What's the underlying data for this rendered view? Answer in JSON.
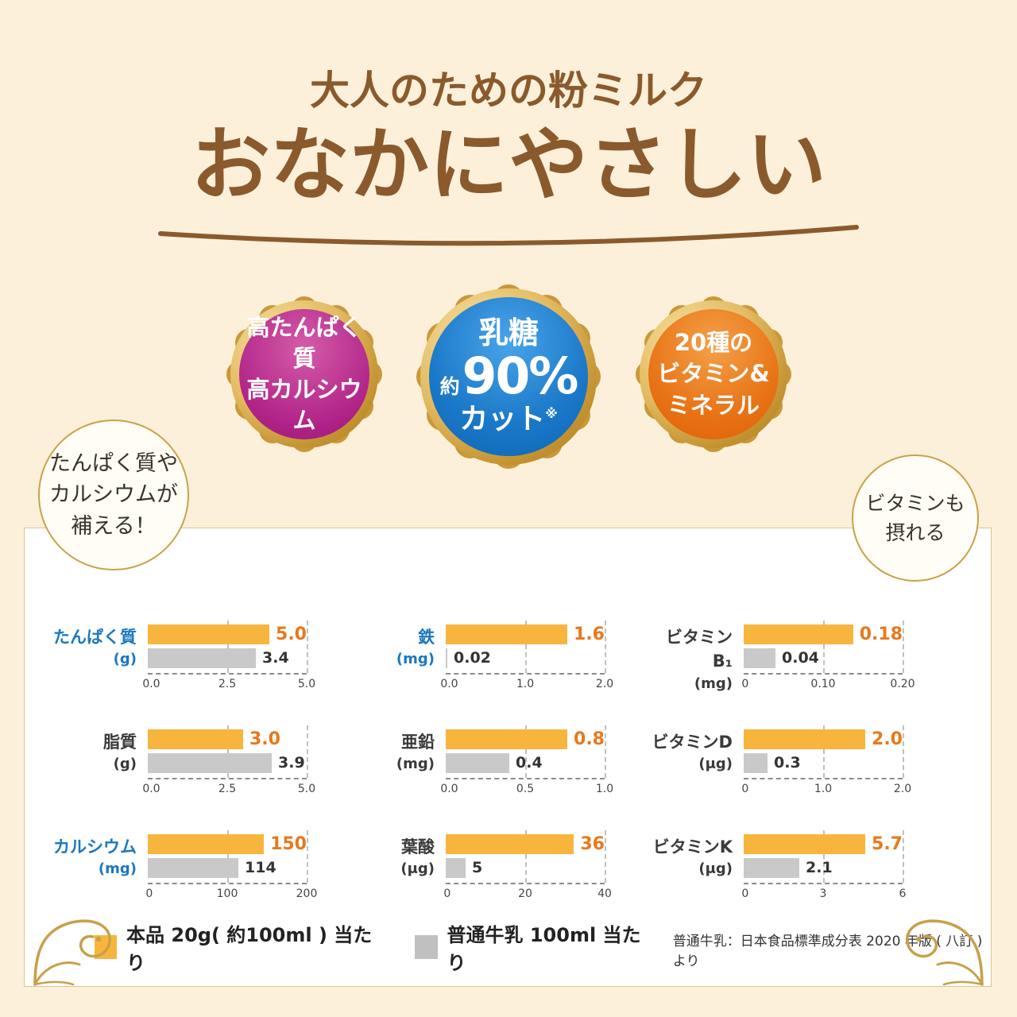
{
  "header": {
    "eyebrow": "大人のための粉ミルク",
    "title": "おなかにやさしい"
  },
  "badges": [
    {
      "name": "protein-calcium",
      "line1": "高たんぱく質",
      "line2": "高カルシウム",
      "color": "#b02288"
    },
    {
      "name": "lactose-cut",
      "top": "乳糖",
      "approx": "約",
      "percent": "90%",
      "bottom": "カット",
      "note_mark": "※",
      "color": "#0e65b5"
    },
    {
      "name": "vitamins-minerals",
      "line1": "20種の",
      "line2": "ビタミン&",
      "line3": "ミネラル",
      "color": "#e87416"
    }
  ],
  "callout_left": {
    "line1": "たんぱく質や",
    "line2": "カルシウムが",
    "line3": "補える！"
  },
  "callout_right": {
    "line1": "ビタミンも",
    "line2": "摂れる"
  },
  "legend": {
    "product": "本品 20g( 約100ml ) 当たり",
    "milk": "普通牛乳 100ml 当たり",
    "note": "普通牛乳：日本食品標準成分表 2020 年版 ( 八訂 ) より"
  },
  "colors": {
    "background": "#fcf0da",
    "headline_brown": "#8a5a2d",
    "bar_product_orange": "#f8b53e",
    "bar_milk_gray": "#c9c9c9",
    "value_orange": "#e8791c",
    "label_blue": "#1a78c0",
    "gold": "#c9a24a"
  },
  "chart_data": [
    {
      "type": "bar",
      "label": "たんぱく質",
      "unit": "(g)",
      "label_color": "#1a78c0",
      "product_value": 5.0,
      "product_display": "5.0",
      "milk_value": 3.4,
      "milk_display": "3.4",
      "max": 5,
      "ticks": [
        "0.0",
        "2.5",
        "5.0"
      ]
    },
    {
      "type": "bar",
      "label": "鉄",
      "unit": "(mg)",
      "label_color": "#1a78c0",
      "product_value": 1.6,
      "product_display": "1.6",
      "milk_value": 0.02,
      "milk_display": "0.02",
      "max": 2,
      "ticks": [
        "0.0",
        "1.0",
        "2.0"
      ]
    },
    {
      "type": "bar",
      "label": "ビタミンB₁",
      "unit": "(mg)",
      "label_color": "#3a3a3a",
      "product_value": 0.18,
      "product_display": "0.18",
      "milk_value": 0.04,
      "milk_display": "0.04",
      "max": 0.2,
      "ticks": [
        "0",
        "0.10",
        "0.20"
      ]
    },
    {
      "type": "bar",
      "label": "脂質",
      "unit": "(g)",
      "label_color": "#3a3a3a",
      "product_value": 3.0,
      "product_display": "3.0",
      "milk_value": 3.9,
      "milk_display": "3.9",
      "max": 5,
      "ticks": [
        "0.0",
        "2.5",
        "5.0"
      ]
    },
    {
      "type": "bar",
      "label": "亜鉛",
      "unit": "(mg)",
      "label_color": "#3a3a3a",
      "product_value": 0.8,
      "product_display": "0.8",
      "milk_value": 0.4,
      "milk_display": "0.4",
      "max": 1,
      "ticks": [
        "0.0",
        "0.5",
        "1.0"
      ]
    },
    {
      "type": "bar",
      "label": "ビタミンD",
      "unit": "(μg)",
      "label_color": "#3a3a3a",
      "product_value": 2.0,
      "product_display": "2.0",
      "milk_value": 0.3,
      "milk_display": "0.3",
      "max": 2,
      "ticks": [
        "0",
        "1.0",
        "2.0"
      ]
    },
    {
      "type": "bar",
      "label": "カルシウム",
      "unit": "(mg)",
      "label_color": "#1a78c0",
      "product_value": 150,
      "product_display": "150",
      "milk_value": 114,
      "milk_display": "114",
      "max": 200,
      "ticks": [
        "0",
        "100",
        "200"
      ]
    },
    {
      "type": "bar",
      "label": "葉酸",
      "unit": "(μg)",
      "label_color": "#3a3a3a",
      "product_value": 36,
      "product_display": "36",
      "milk_value": 5,
      "milk_display": "5",
      "max": 40,
      "ticks": [
        "0",
        "20",
        "40"
      ]
    },
    {
      "type": "bar",
      "label": "ビタミンK",
      "unit": "(μg)",
      "label_color": "#3a3a3a",
      "product_value": 5.7,
      "product_display": "5.7",
      "milk_value": 2.1,
      "milk_display": "2.1",
      "max": 6,
      "ticks": [
        "0",
        "3",
        "6"
      ]
    }
  ]
}
